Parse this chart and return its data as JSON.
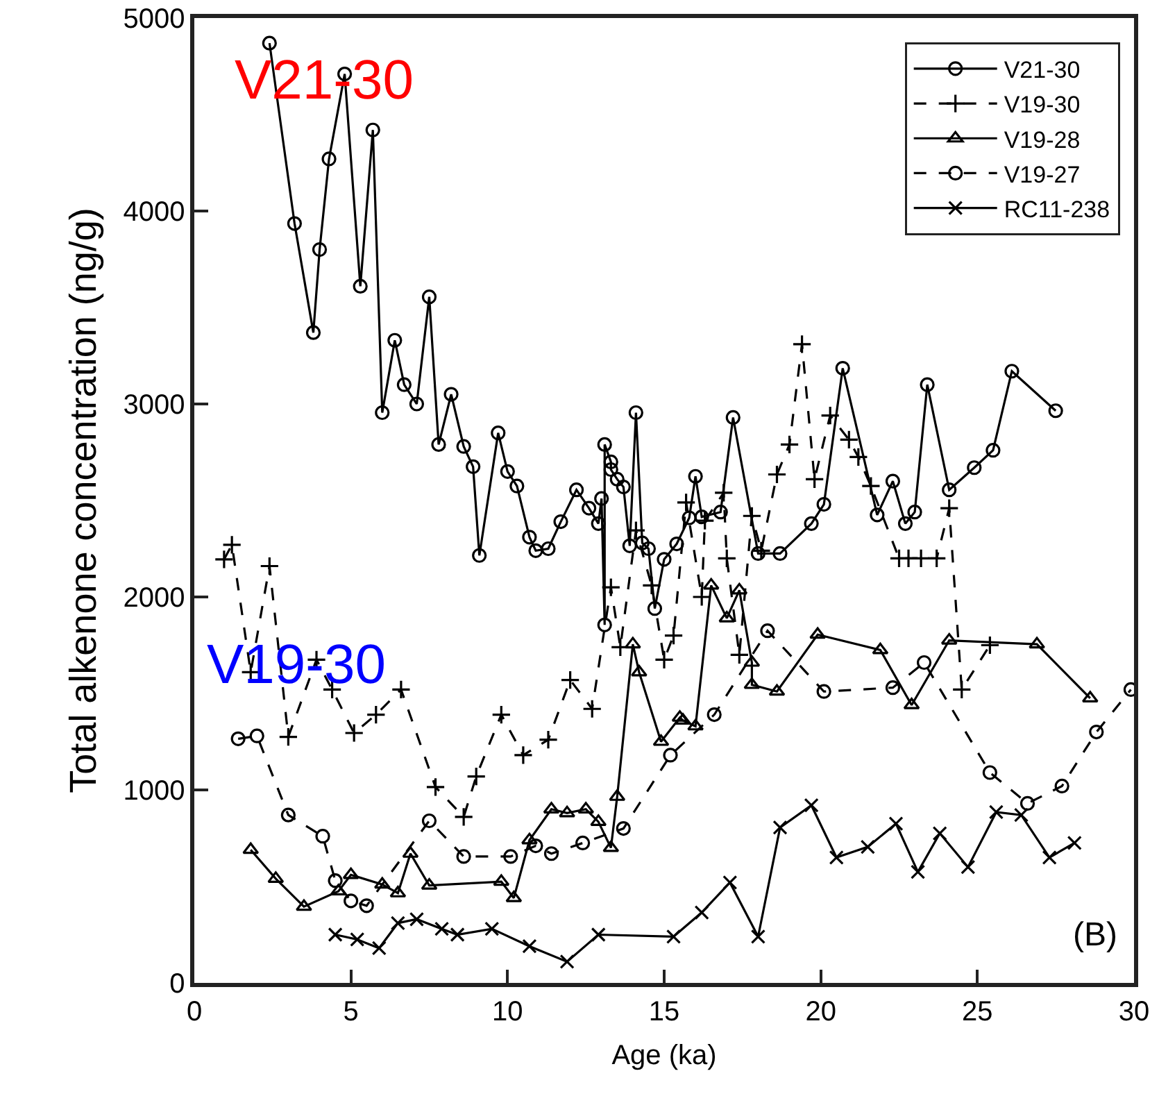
{
  "chart_data": {
    "type": "line",
    "xlabel": "Age (ka)",
    "ylabel": "Total alkenone concentration (ng/g)",
    "xlim": [
      0,
      30
    ],
    "xticks": [
      0,
      5,
      10,
      15,
      20,
      25,
      30
    ],
    "ylim": [
      0,
      5000
    ],
    "yticks": [
      0,
      1000,
      2000,
      3000,
      4000,
      5000
    ],
    "grid": false,
    "legend": "top right",
    "series": [
      {
        "name": "V21-30",
        "color": "#000000",
        "marker": "circle",
        "line_style": "solid",
        "x": [
          2.4,
          3.2,
          3.8,
          4.0,
          4.3,
          4.8,
          5.3,
          5.7,
          6.0,
          6.4,
          6.7,
          7.1,
          7.5,
          7.8,
          8.2,
          8.6,
          8.9,
          9.1,
          9.7,
          10.0,
          10.3,
          10.7,
          10.9,
          11.3,
          11.7,
          12.2,
          12.6,
          12.9,
          13.0,
          13.1,
          13.1,
          13.3,
          13.3,
          13.5,
          13.7,
          13.9,
          14.1,
          14.3,
          14.5,
          14.7,
          15.0,
          15.4,
          15.8,
          16.0,
          16.2,
          16.8,
          17.2,
          18.0,
          18.7,
          19.7,
          20.1,
          20.7,
          21.8,
          22.3,
          22.7,
          23.0,
          23.4,
          24.1,
          24.9,
          25.5,
          26.1,
          27.5
        ],
        "values": [
          4870,
          3935,
          3370,
          3800,
          4270,
          4710,
          3610,
          4420,
          2955,
          3330,
          3100,
          3000,
          3555,
          2790,
          3050,
          2780,
          2675,
          2215,
          2850,
          2650,
          2575,
          2310,
          2240,
          2250,
          2390,
          2555,
          2460,
          2380,
          2510,
          1855,
          2790,
          2700,
          2660,
          2610,
          2570,
          2265,
          2955,
          2280,
          2250,
          1940,
          2195,
          2275,
          2410,
          2625,
          2415,
          2440,
          2930,
          2225,
          2225,
          2380,
          2480,
          3185,
          2425,
          2600,
          2380,
          2440,
          3100,
          2555,
          2670,
          2760,
          3170,
          2965
        ]
      },
      {
        "name": "V19-30",
        "color": "#000000",
        "marker": "plus",
        "line_style": "dashed",
        "x": [
          0.95,
          1.2,
          1.8,
          2.4,
          3.0,
          3.9,
          4.4,
          5.1,
          5.8,
          6.6,
          7.7,
          8.6,
          9.0,
          9.8,
          10.5,
          11.3,
          12.0,
          12.7,
          13.3,
          13.6,
          14.1,
          14.6,
          15.0,
          15.3,
          15.7,
          16.2,
          16.3,
          16.9,
          17.0,
          17.4,
          17.8,
          18.1,
          18.6,
          19.0,
          19.4,
          19.8,
          20.3,
          20.9,
          21.2,
          21.6,
          22.5,
          22.8,
          23.2,
          23.7,
          24.1,
          24.5,
          25.4
        ],
        "values": [
          2195,
          2270,
          1610,
          2160,
          1275,
          1675,
          1520,
          1295,
          1390,
          1520,
          1015,
          860,
          1070,
          1390,
          1180,
          1260,
          1570,
          1420,
          2050,
          1740,
          2345,
          2060,
          1675,
          1800,
          2490,
          2000,
          2395,
          2540,
          2200,
          1700,
          2420,
          2240,
          2635,
          2790,
          3310,
          2610,
          2940,
          2815,
          2725,
          2575,
          2200,
          2200,
          2200,
          2200,
          2460,
          1520,
          1750
        ]
      },
      {
        "name": "V19-28",
        "color": "#000000",
        "marker": "triangle",
        "line_style": "solid",
        "x": [
          1.8,
          2.6,
          3.5,
          4.6,
          5.0,
          6.0,
          6.5,
          6.9,
          7.5,
          9.8,
          10.2,
          10.7,
          11.4,
          11.9,
          12.5,
          12.9,
          13.3,
          13.5,
          14.0,
          14.2,
          14.9,
          15.5,
          15.6,
          16.0,
          16.5,
          17.0,
          17.4,
          17.8,
          17.8,
          18.6,
          19.9,
          21.9,
          22.9,
          24.1,
          26.9,
          28.6
        ],
        "values": [
          690,
          540,
          395,
          475,
          560,
          510,
          465,
          670,
          505,
          525,
          440,
          740,
          900,
          880,
          900,
          835,
          700,
          965,
          1755,
          1610,
          1250,
          1375,
          1360,
          1330,
          2060,
          1890,
          2035,
          1660,
          1545,
          1510,
          1805,
          1725,
          1440,
          1775,
          1755,
          1475
        ]
      },
      {
        "name": "V19-27",
        "color": "#000000",
        "marker": "circle",
        "line_style": "dashed",
        "x": [
          1.4,
          2.0,
          3.0,
          4.1,
          4.5,
          5.0,
          5.5,
          7.5,
          8.6,
          10.1,
          10.9,
          11.4,
          12.4,
          13.7,
          15.2,
          16.6,
          18.3,
          20.1,
          22.3,
          23.3,
          25.4,
          26.6,
          27.7,
          28.8,
          29.9
        ],
        "values": [
          1265,
          1280,
          870,
          760,
          530,
          425,
          400,
          840,
          655,
          655,
          710,
          670,
          725,
          800,
          1180,
          1390,
          1825,
          1510,
          1530,
          1660,
          1090,
          930,
          1020,
          1300,
          1520
        ]
      },
      {
        "name": "RC11-238",
        "color": "#000000",
        "marker": "cross",
        "line_style": "solid",
        "x": [
          4.5,
          5.2,
          5.9,
          6.5,
          7.1,
          7.9,
          8.4,
          9.5,
          10.7,
          11.9,
          12.9,
          15.3,
          16.2,
          17.1,
          18.0,
          18.7,
          19.7,
          20.5,
          21.5,
          22.4,
          23.1,
          23.8,
          24.7,
          25.6,
          26.4,
          27.3,
          28.1
        ],
        "values": [
          250,
          225,
          180,
          310,
          330,
          280,
          250,
          280,
          190,
          110,
          250,
          240,
          365,
          520,
          240,
          805,
          920,
          650,
          705,
          825,
          575,
          775,
          600,
          885,
          870,
          650,
          725
        ]
      }
    ],
    "annotations": [
      "V21-30",
      "V19-30",
      "(B)"
    ]
  }
}
